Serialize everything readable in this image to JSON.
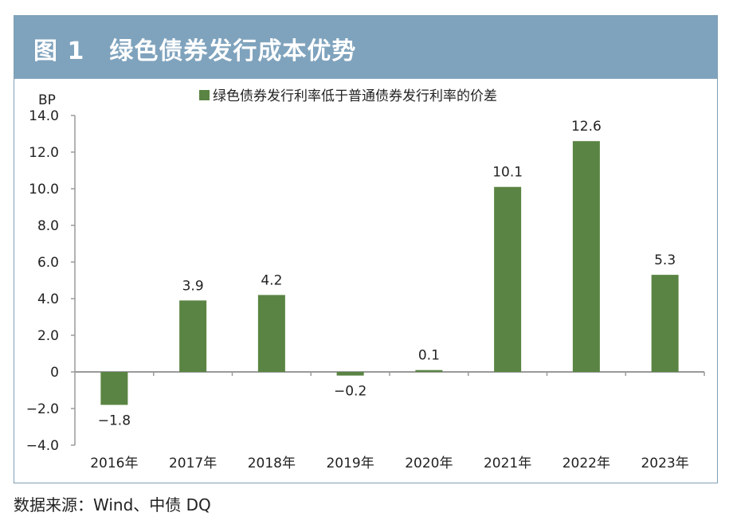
{
  "header": {
    "title": "图 1　绿色债券发行成本优势"
  },
  "source": "数据来源：Wind、中债 DQ",
  "colors": {
    "bar": "#5a8443",
    "header_bg": "#7fa3bd",
    "axis": "#9a9a9a"
  },
  "chart_data": {
    "type": "bar",
    "title": "图 1　绿色债券发行成本优势",
    "unit_label": "BP",
    "legend": "绿色债券发行利率低于普通债券发行利率的价差",
    "categories": [
      "2016年",
      "2017年",
      "2018年",
      "2019年",
      "2020年",
      "2021年",
      "2022年",
      "2023年"
    ],
    "values": [
      -1.8,
      3.9,
      4.2,
      -0.2,
      0.1,
      10.1,
      12.6,
      5.3
    ],
    "value_labels": [
      "−1.8",
      "3.9",
      "4.2",
      "−0.2",
      "0.1",
      "10.1",
      "12.6",
      "5.3"
    ],
    "ylim": [
      -4.0,
      14.0
    ],
    "yticks": [
      14.0,
      12.0,
      10.0,
      8.0,
      6.0,
      4.0,
      2.0,
      0,
      -2.0,
      -4.0
    ],
    "ytick_labels": [
      "14.0",
      "12.0",
      "10.0",
      "8.0",
      "6.0",
      "4.0",
      "2.0",
      "0",
      "−2.0",
      "−4.0"
    ]
  }
}
